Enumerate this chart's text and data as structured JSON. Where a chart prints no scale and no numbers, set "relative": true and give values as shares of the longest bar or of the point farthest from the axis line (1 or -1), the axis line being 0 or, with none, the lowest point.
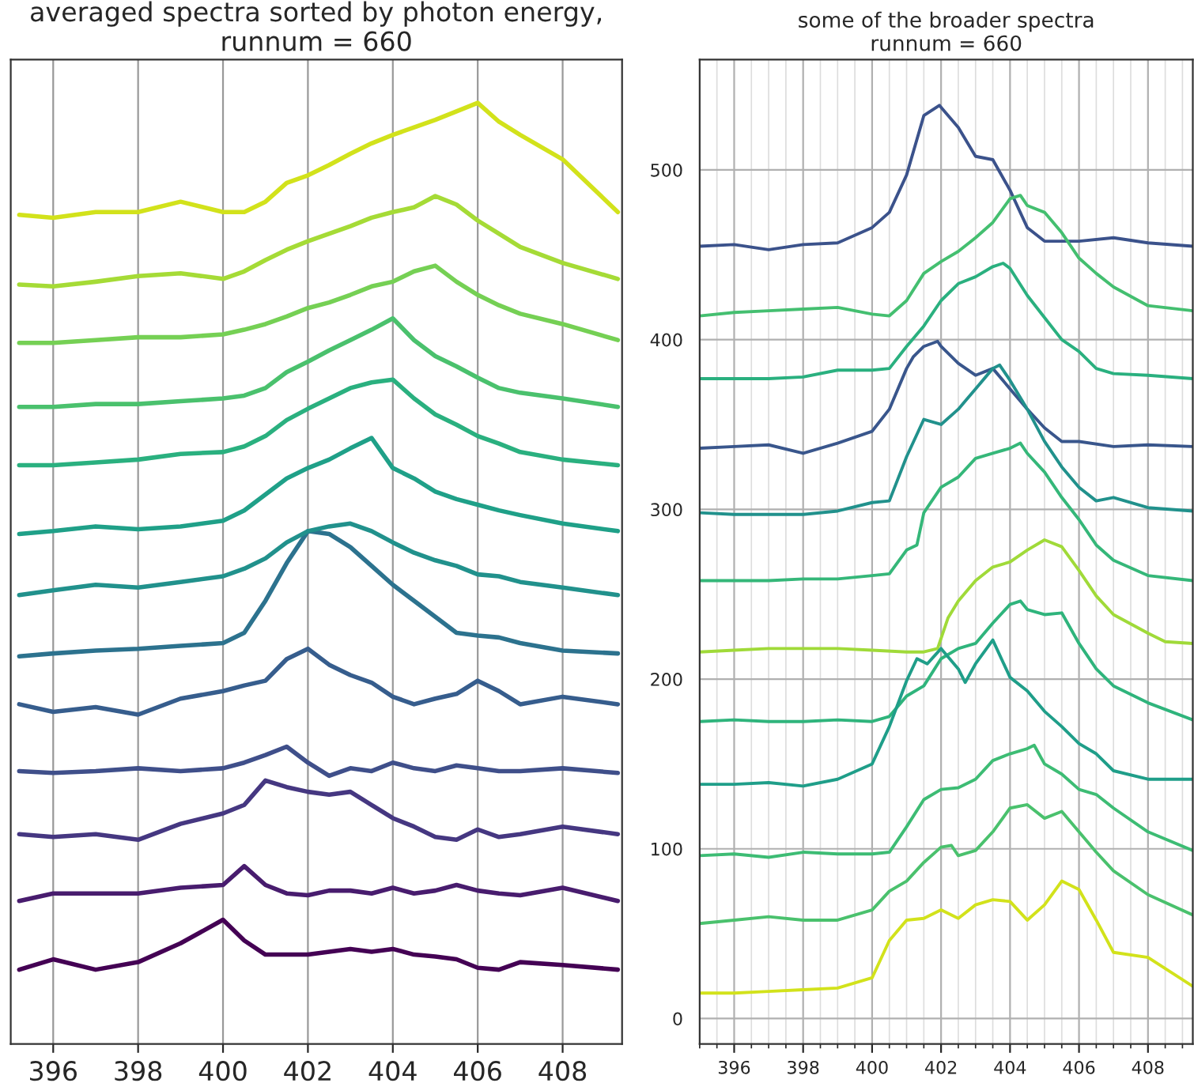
{
  "chart_data": [
    {
      "type": "line",
      "title": "some of the broader spectra\nrunnum = 660",
      "grid": true,
      "xlim": [
        395,
        409.3
      ],
      "xticks": [
        396,
        398,
        400,
        402,
        404,
        406,
        408
      ],
      "ylim": [
        -15,
        565
      ],
      "yticks": [
        0,
        100,
        200,
        300,
        400,
        500
      ],
      "series": [
        {
          "color": "#3b528b",
          "x": [
            395,
            396,
            397,
            398,
            399,
            400,
            400.5,
            401,
            401.5,
            401.95,
            402.5,
            403,
            403.5,
            404,
            404.5,
            405,
            406,
            407,
            408,
            409.3
          ],
          "values": [
            455,
            456,
            453,
            456,
            457,
            466,
            475,
            497,
            532,
            538,
            525,
            508,
            506,
            488,
            466,
            458,
            458,
            460,
            457,
            455
          ]
        },
        {
          "color": "#44bf70",
          "x": [
            395,
            396,
            397,
            398,
            399,
            400,
            400.5,
            401,
            401.5,
            402,
            402.5,
            403,
            403.5,
            404,
            404.3,
            404.5,
            405,
            405.5,
            406,
            406.5,
            407,
            408,
            409.3
          ],
          "values": [
            414,
            416,
            417,
            418,
            419,
            415,
            414,
            423,
            439,
            446,
            452,
            460,
            469,
            483,
            485,
            479,
            475,
            463,
            448,
            439,
            431,
            420,
            417
          ]
        },
        {
          "color": "#2ab07f",
          "x": [
            395,
            396,
            397,
            398,
            399,
            400,
            400.5,
            401,
            401.5,
            402,
            402.5,
            403,
            403.5,
            403.8,
            404,
            404.5,
            405,
            405.5,
            406,
            406.5,
            407,
            408,
            409.3
          ],
          "values": [
            377,
            377,
            377,
            378,
            382,
            382,
            383,
            396,
            408,
            423,
            433,
            437,
            443,
            445,
            442,
            426,
            413,
            400,
            393,
            383,
            380,
            379,
            377
          ]
        },
        {
          "color": "#39568c",
          "x": [
            395,
            396,
            397,
            398,
            399,
            400,
            400.5,
            401,
            401.2,
            401.5,
            401.9,
            402,
            402.5,
            403,
            403.5,
            404,
            404.5,
            405,
            405.5,
            406,
            407,
            408,
            409.3
          ],
          "values": [
            336,
            337,
            338,
            333,
            339,
            346,
            359,
            383,
            390,
            396,
            399,
            396,
            386,
            379,
            383,
            371,
            359,
            348,
            340,
            340,
            337,
            338,
            337
          ]
        },
        {
          "color": "#21918c",
          "x": [
            395,
            396,
            397,
            398,
            399,
            400,
            400.5,
            401,
            401.5,
            402,
            402.5,
            403,
            403.5,
            403.7,
            404,
            404.5,
            405,
            405.5,
            406,
            406.5,
            407,
            408,
            409.3
          ],
          "values": [
            298,
            297,
            297,
            297,
            299,
            304,
            305,
            331,
            353,
            350,
            359,
            371,
            383,
            385,
            376,
            359,
            340,
            325,
            313,
            305,
            307,
            301,
            299
          ]
        },
        {
          "color": "#35b779",
          "x": [
            395,
            396,
            397,
            398,
            399,
            400,
            400.5,
            401,
            401.3,
            401.5,
            402,
            402.5,
            403,
            403.5,
            404,
            404.3,
            404.5,
            405,
            405.5,
            406,
            406.5,
            407,
            408,
            409.3
          ],
          "values": [
            258,
            258,
            258,
            259,
            259,
            261,
            262,
            276,
            279,
            298,
            313,
            319,
            330,
            333,
            336,
            339,
            333,
            322,
            307,
            294,
            279,
            270,
            261,
            258
          ]
        },
        {
          "color": "#a0da39",
          "x": [
            395,
            396,
            397,
            398,
            399,
            400,
            401,
            401.5,
            401.9,
            402.2,
            402.5,
            403,
            403.5,
            404,
            404.5,
            405,
            405.5,
            406,
            406.5,
            407,
            408,
            408.5,
            409.3
          ],
          "values": [
            216,
            217,
            218,
            218,
            218,
            217,
            216,
            216,
            218,
            236,
            246,
            258,
            266,
            269,
            276,
            282,
            278,
            264,
            249,
            238,
            227,
            222,
            221
          ]
        },
        {
          "color": "#2fb47c",
          "x": [
            395,
            396,
            397,
            398,
            399,
            400,
            400.5,
            401,
            401.5,
            402,
            402.5,
            403,
            403.5,
            404,
            404.3,
            404.5,
            405,
            405.5,
            406,
            406.5,
            407,
            408,
            409.3
          ],
          "values": [
            175,
            176,
            175,
            175,
            176,
            175,
            178,
            190,
            196,
            212,
            218,
            221,
            233,
            244,
            246,
            241,
            238,
            239,
            221,
            206,
            196,
            186,
            176
          ]
        },
        {
          "color": "#1f9e89",
          "x": [
            395,
            396,
            397,
            398,
            399,
            400,
            400.5,
            401,
            401.3,
            401.6,
            402,
            402.5,
            402.7,
            403,
            403.5,
            404,
            404.5,
            405,
            405.5,
            406,
            406.5,
            407,
            408,
            409.3
          ],
          "values": [
            138,
            138,
            139,
            137,
            141,
            150,
            172,
            199,
            212,
            209,
            218,
            206,
            198,
            209,
            223,
            201,
            193,
            181,
            172,
            162,
            156,
            146,
            141,
            141
          ]
        },
        {
          "color": "#3dbc74",
          "x": [
            395,
            396,
            397,
            398,
            399,
            400,
            400.5,
            401,
            401.5,
            402,
            402.5,
            403,
            403.5,
            404,
            404.5,
            404.7,
            405,
            405.5,
            406,
            406.5,
            407,
            408,
            409.3
          ],
          "values": [
            96,
            97,
            95,
            98,
            97,
            97,
            98,
            113,
            129,
            135,
            136,
            141,
            152,
            156,
            159,
            161,
            150,
            144,
            135,
            132,
            124,
            110,
            99
          ]
        },
        {
          "color": "#4ac16d",
          "x": [
            395,
            396,
            397,
            398,
            399,
            400,
            400.5,
            401,
            401.5,
            402,
            402.3,
            402.5,
            403,
            403.5,
            404,
            404.5,
            405,
            405.5,
            406,
            406.5,
            407,
            408,
            409.3
          ],
          "values": [
            56,
            58,
            60,
            58,
            58,
            64,
            75,
            81,
            92,
            101,
            102,
            96,
            99,
            110,
            124,
            126,
            118,
            122,
            110,
            98,
            87,
            73,
            61
          ]
        },
        {
          "color": "#d2e21b",
          "x": [
            395,
            396,
            397,
            398,
            399,
            400,
            400.5,
            401,
            401.5,
            402,
            402.5,
            403,
            403.5,
            404,
            404.5,
            405,
            405.5,
            406,
            406.5,
            407,
            408,
            409.3
          ],
          "values": [
            15,
            15,
            16,
            17,
            18,
            24,
            46,
            58,
            59,
            64,
            59,
            67,
            70,
            69,
            58,
            67,
            81,
            76,
            58,
            39,
            36,
            19
          ]
        }
      ]
    },
    {
      "type": "line",
      "title": "averaged spectra sorted by photon energy,\nrunnum = 660",
      "relative": true,
      "grid": "x",
      "tick_labels": "x",
      "xlim": [
        395,
        409.4
      ],
      "xticks": [
        396,
        398,
        400,
        402,
        404,
        406,
        408
      ],
      "x": [
        395.2,
        396,
        397,
        398,
        399,
        400,
        400.5,
        401,
        401.5,
        402,
        402.5,
        403,
        403.5,
        404,
        404.5,
        405,
        405.5,
        406,
        406.5,
        407,
        408,
        409.3
      ],
      "series": [
        {
          "color": "#440154",
          "values": [
            0.079,
            0.09,
            0.079,
            0.087,
            0.107,
            0.132,
            0.11,
            0.095,
            0.095,
            0.095,
            0.098,
            0.101,
            0.098,
            0.101,
            0.095,
            0.093,
            0.09,
            0.081,
            0.079,
            0.087,
            0.084,
            0.079
          ]
        },
        {
          "color": "#481c6e",
          "values": [
            0.152,
            0.16,
            0.16,
            0.16,
            0.166,
            0.169,
            0.189,
            0.169,
            0.16,
            0.158,
            0.163,
            0.163,
            0.16,
            0.166,
            0.16,
            0.163,
            0.169,
            0.163,
            0.16,
            0.158,
            0.166,
            0.152
          ]
        },
        {
          "color": "#453781",
          "values": [
            0.223,
            0.22,
            0.223,
            0.217,
            0.234,
            0.245,
            0.254,
            0.28,
            0.273,
            0.268,
            0.265,
            0.268,
            0.254,
            0.24,
            0.231,
            0.22,
            0.217,
            0.228,
            0.22,
            0.223,
            0.231,
            0.223
          ]
        },
        {
          "color": "#3f4f8a",
          "values": [
            0.29,
            0.288,
            0.29,
            0.293,
            0.29,
            0.293,
            0.299,
            0.307,
            0.316,
            0.299,
            0.285,
            0.293,
            0.29,
            0.299,
            0.293,
            0.29,
            0.296,
            0.293,
            0.29,
            0.29,
            0.293,
            0.288
          ]
        },
        {
          "color": "#365d8d",
          "values": [
            0.361,
            0.353,
            0.358,
            0.35,
            0.367,
            0.375,
            0.381,
            0.386,
            0.409,
            0.42,
            0.403,
            0.392,
            0.384,
            0.369,
            0.361,
            0.367,
            0.372,
            0.386,
            0.375,
            0.361,
            0.369,
            0.361
          ]
        },
        {
          "color": "#2c728e",
          "values": [
            0.412,
            0.415,
            0.418,
            0.42,
            0.423,
            0.426,
            0.437,
            0.471,
            0.511,
            0.545,
            0.542,
            0.528,
            0.508,
            0.488,
            0.471,
            0.454,
            0.437,
            0.434,
            0.432,
            0.426,
            0.418,
            0.415
          ]
        },
        {
          "color": "#21918c",
          "values": [
            0.477,
            0.482,
            0.488,
            0.485,
            0.491,
            0.497,
            0.505,
            0.516,
            0.533,
            0.545,
            0.55,
            0.553,
            0.545,
            0.533,
            0.522,
            0.514,
            0.508,
            0.499,
            0.497,
            0.491,
            0.485,
            0.477
          ]
        },
        {
          "color": "#1fa088",
          "values": [
            0.542,
            0.545,
            0.55,
            0.547,
            0.55,
            0.556,
            0.567,
            0.584,
            0.601,
            0.612,
            0.621,
            0.633,
            0.644,
            0.612,
            0.601,
            0.587,
            0.579,
            0.573,
            0.567,
            0.562,
            0.553,
            0.545
          ]
        },
        {
          "color": "#2ab07f",
          "values": [
            0.615,
            0.615,
            0.618,
            0.621,
            0.627,
            0.629,
            0.635,
            0.646,
            0.663,
            0.675,
            0.686,
            0.697,
            0.703,
            0.706,
            0.686,
            0.669,
            0.658,
            0.646,
            0.638,
            0.629,
            0.621,
            0.615
          ]
        },
        {
          "color": "#4ac16d",
          "values": [
            0.677,
            0.677,
            0.68,
            0.68,
            0.683,
            0.686,
            0.689,
            0.697,
            0.714,
            0.725,
            0.737,
            0.748,
            0.759,
            0.771,
            0.748,
            0.731,
            0.72,
            0.708,
            0.697,
            0.692,
            0.686,
            0.677
          ]
        },
        {
          "color": "#75d054",
          "values": [
            0.745,
            0.745,
            0.748,
            0.751,
            0.751,
            0.754,
            0.759,
            0.765,
            0.773,
            0.782,
            0.788,
            0.796,
            0.805,
            0.81,
            0.821,
            0.827,
            0.81,
            0.796,
            0.785,
            0.776,
            0.765,
            0.748
          ]
        },
        {
          "color": "#a5db36",
          "values": [
            0.807,
            0.805,
            0.81,
            0.816,
            0.819,
            0.813,
            0.821,
            0.833,
            0.844,
            0.853,
            0.861,
            0.869,
            0.878,
            0.884,
            0.889,
            0.901,
            0.892,
            0.875,
            0.861,
            0.847,
            0.83,
            0.813
          ]
        },
        {
          "color": "#d2e21b",
          "values": [
            0.881,
            0.878,
            0.884,
            0.884,
            0.895,
            0.884,
            0.884,
            0.895,
            0.915,
            0.923,
            0.934,
            0.946,
            0.957,
            0.966,
            0.974,
            0.982,
            0.991,
            1.0,
            0.98,
            0.966,
            0.94,
            0.884
          ]
        }
      ]
    }
  ]
}
